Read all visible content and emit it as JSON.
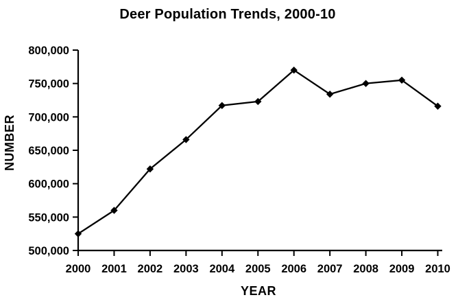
{
  "window": {
    "background_color": "#ffffff",
    "text_color": "#000000"
  },
  "chart_data": {
    "type": "line",
    "title": "Deer Population Trends, 2000-10",
    "xlabel": "YEAR",
    "ylabel": "NUMBER",
    "categories": [
      2000,
      2001,
      2002,
      2003,
      2004,
      2005,
      2006,
      2007,
      2008,
      2009,
      2010
    ],
    "values": [
      525000,
      560000,
      622000,
      666000,
      717000,
      723000,
      770000,
      734000,
      750000,
      755000,
      716000
    ],
    "ylim": [
      500000,
      800000
    ],
    "ytick_step": 50000,
    "ytick_labels": [
      "500,000",
      "550,000",
      "600,000",
      "650,000",
      "700,000",
      "750,000",
      "800,000"
    ],
    "line_color": "#000000",
    "marker": "diamond",
    "marker_color": "#000000",
    "grid": false,
    "legend": "none",
    "plot_background": "#ffffff"
  }
}
